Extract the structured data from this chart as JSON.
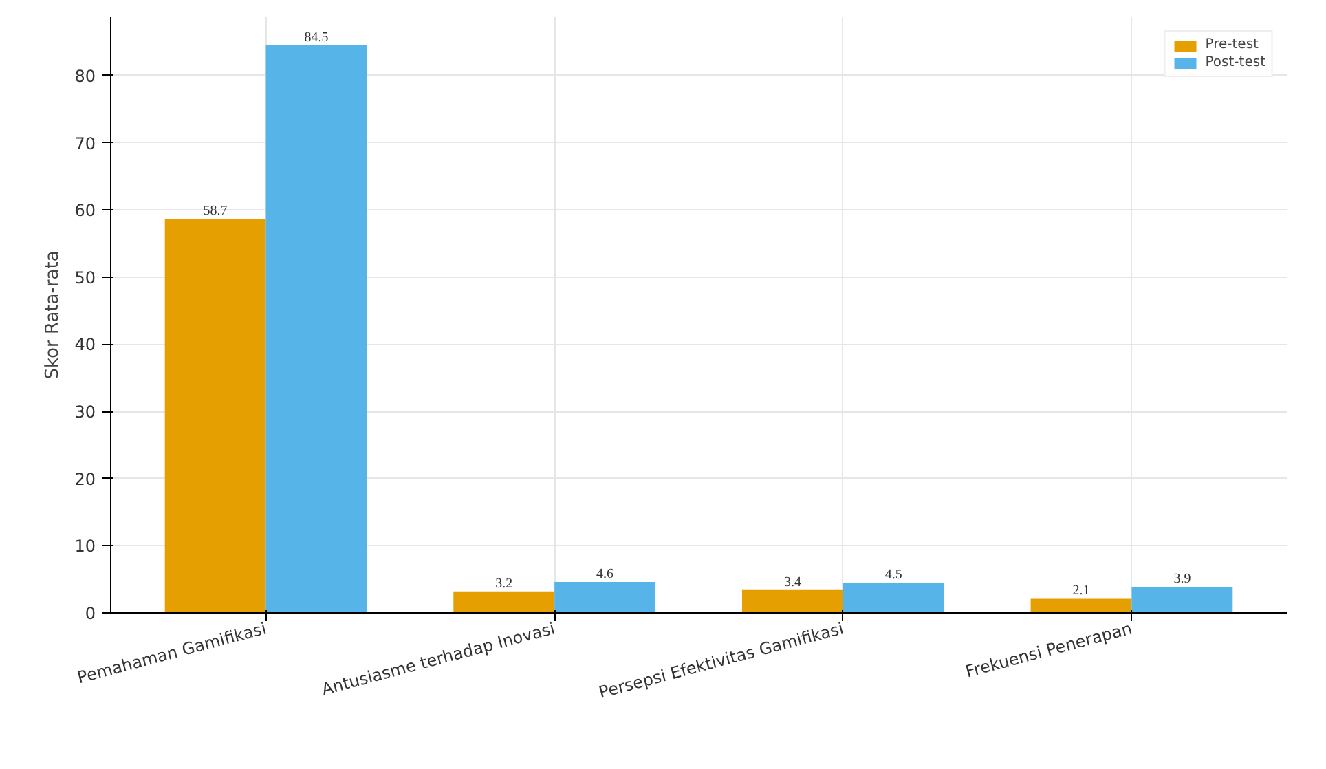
{
  "chart_data": {
    "type": "bar",
    "ylabel": "Skor Rata-rata",
    "categories": [
      "Pemahaman Gamifikasi",
      "Antusiasme terhadap Inovasi",
      "Persepsi Efektivitas Gamifikasi",
      "Frekuensi Penerapan"
    ],
    "series": [
      {
        "name": "Pre-test",
        "color": "#e69f00",
        "values": [
          58.7,
          3.2,
          3.4,
          2.1
        ]
      },
      {
        "name": "Post-test",
        "color": "#56b4e9",
        "values": [
          84.5,
          4.6,
          4.5,
          3.9
        ]
      }
    ],
    "ylim": [
      0,
      88.7
    ],
    "yticks": [
      0,
      10,
      20,
      30,
      40,
      50,
      60,
      70,
      80
    ],
    "grid": true,
    "legend": "top right",
    "data_labels": true
  }
}
